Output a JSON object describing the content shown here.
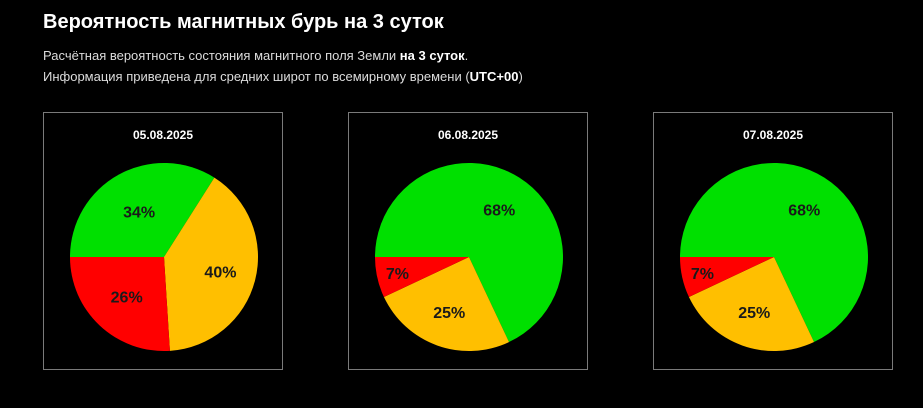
{
  "header": {
    "title": "Вероятность магнитных бурь на 3 суток",
    "line1_prefix": "Расчётная вероятность состояния магнитного поля Земли ",
    "line1_bold": "на 3 суток",
    "line1_suffix": ".",
    "line2_prefix": "Информация приведена для средних широт по всемирному времени (",
    "line2_bold": "UTC+00",
    "line2_suffix": ")"
  },
  "colors": {
    "green": "#00e000",
    "yellow": "#ffbf00",
    "red": "#ff0000",
    "background": "#000000"
  },
  "chart_data": [
    {
      "type": "pie",
      "title": "05.08.2025",
      "slices": [
        {
          "label": "34%",
          "value": 34,
          "color": "#00e000"
        },
        {
          "label": "40%",
          "value": 40,
          "color": "#ffbf00"
        },
        {
          "label": "26%",
          "value": 26,
          "color": "#ff0000"
        }
      ]
    },
    {
      "type": "pie",
      "title": "06.08.2025",
      "slices": [
        {
          "label": "68%",
          "value": 68,
          "color": "#00e000"
        },
        {
          "label": "25%",
          "value": 25,
          "color": "#ffbf00"
        },
        {
          "label": "7%",
          "value": 7,
          "color": "#ff0000"
        }
      ]
    },
    {
      "type": "pie",
      "title": "07.08.2025",
      "slices": [
        {
          "label": "68%",
          "value": 68,
          "color": "#00e000"
        },
        {
          "label": "25%",
          "value": 25,
          "color": "#ffbf00"
        },
        {
          "label": "7%",
          "value": 7,
          "color": "#ff0000"
        }
      ]
    }
  ]
}
